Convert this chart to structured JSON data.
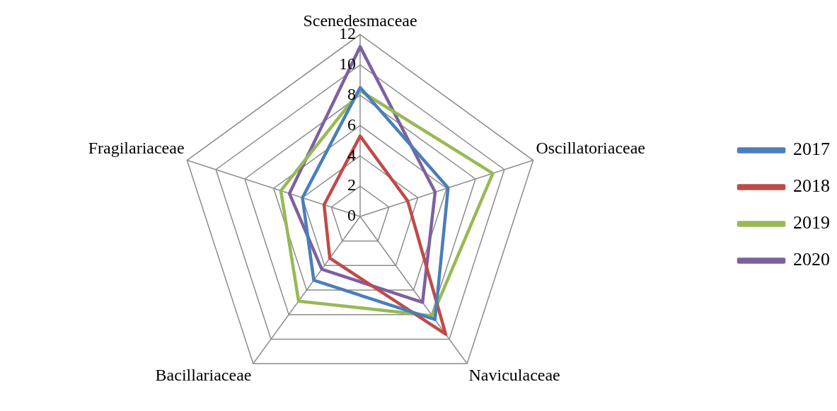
{
  "chart_data": {
    "type": "radar",
    "categories": [
      "Scenedesmaceae",
      "Oscillatoriaceae",
      "Naviculaceae",
      "Bacillariaceae",
      "Fragilariaceae"
    ],
    "series": [
      {
        "name": "2017",
        "color": "#4a7ebb",
        "values": [
          8.5,
          6.1,
          8.4,
          5.2,
          4.0
        ]
      },
      {
        "name": "2018",
        "color": "#be4b48",
        "values": [
          5.3,
          3.3,
          9.6,
          3.4,
          2.5
        ]
      },
      {
        "name": "2019",
        "color": "#98b954",
        "values": [
          8.3,
          9.2,
          8.1,
          6.9,
          5.5
        ]
      },
      {
        "name": "2020",
        "color": "#7d60a0",
        "values": [
          11.2,
          5.2,
          7.0,
          4.3,
          4.9
        ]
      }
    ],
    "ylim": [
      0,
      12
    ],
    "yticks": [
      0,
      2,
      4,
      6,
      8,
      10,
      12
    ],
    "grid": true,
    "legend": "right",
    "marker": "none",
    "line_style": "solid"
  }
}
